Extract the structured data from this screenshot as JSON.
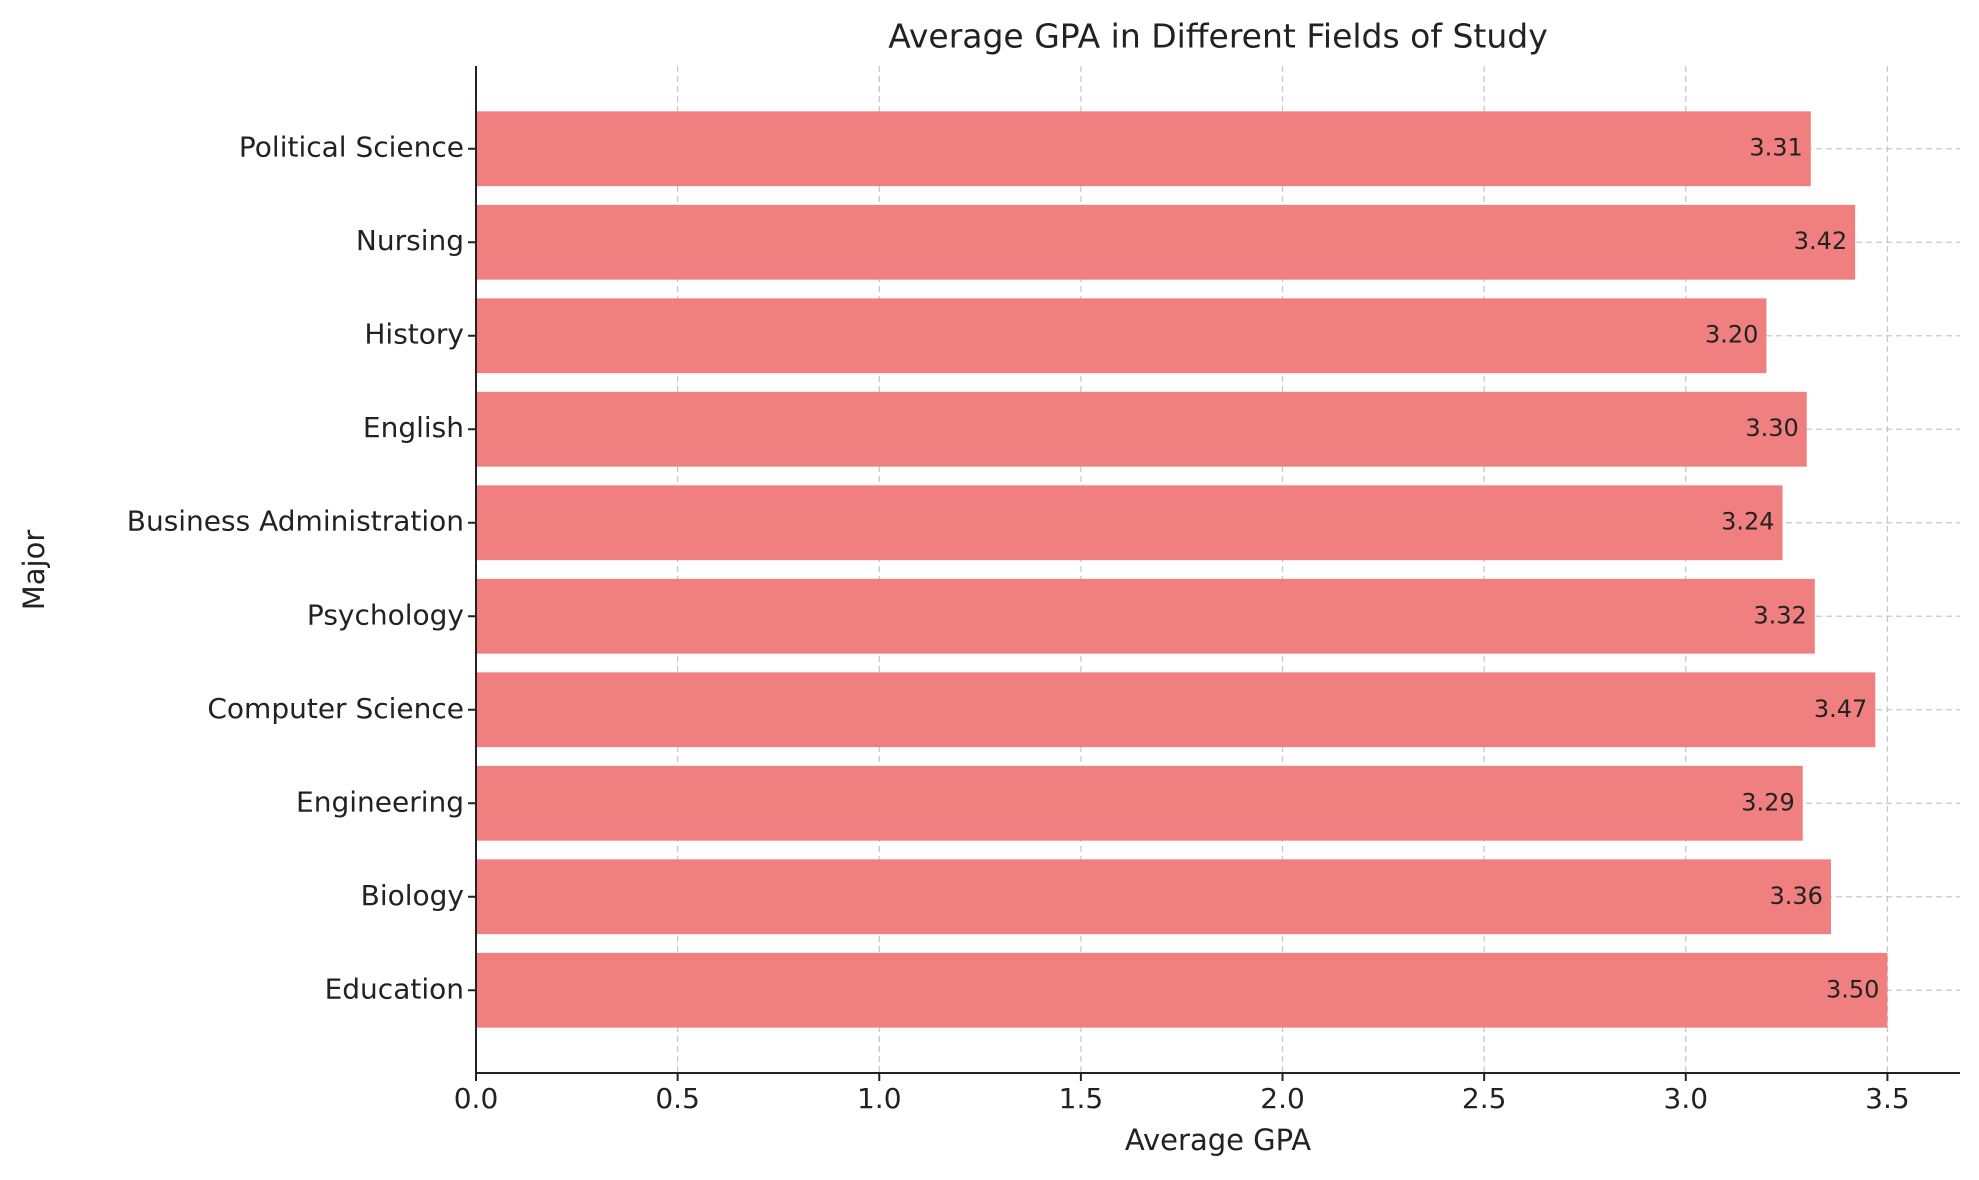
{
  "chart_data": {
    "type": "bar",
    "orientation": "horizontal",
    "title": "Average GPA in Different Fields of Study",
    "x_label": "Average GPA",
    "y_label": "Major",
    "categories": [
      "Education",
      "Biology",
      "Engineering",
      "Computer Science",
      "Psychology",
      "Business Administration",
      "English",
      "History",
      "Nursing",
      "Political Science"
    ],
    "values": [
      3.5,
      3.36,
      3.29,
      3.47,
      3.32,
      3.24,
      3.3,
      3.2,
      3.42,
      3.31
    ],
    "value_labels": [
      "3.50",
      "3.36",
      "3.29",
      "3.47",
      "3.32",
      "3.24",
      "3.30",
      "3.20",
      "3.42",
      "3.31"
    ],
    "color": "#f08080",
    "xlim": [
      0,
      3.68
    ],
    "xticks": [
      {
        "value": 0,
        "label": "0.0"
      },
      0.5,
      {
        "value": 1,
        "label": "1.0"
      },
      1.5,
      {
        "value": 2,
        "label": "2.0"
      },
      2.5,
      {
        "value": 3,
        "label": "3.0"
      },
      3.5
    ],
    "grid": true
  }
}
